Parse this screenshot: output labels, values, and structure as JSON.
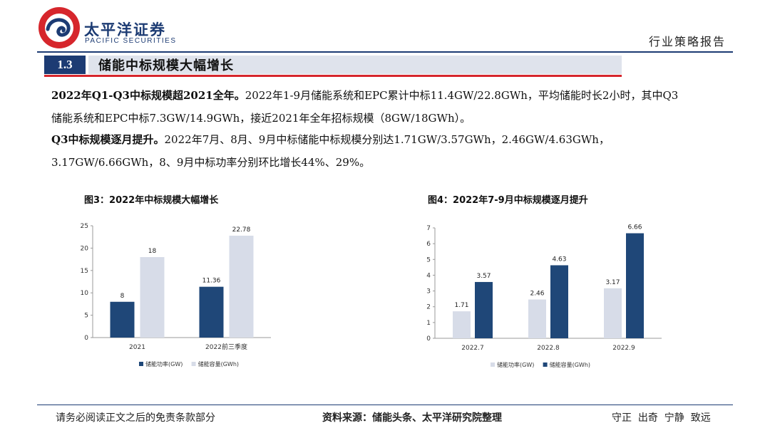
{
  "header": {
    "brand_cn": "太平洋证券",
    "brand_en": "PACIFIC SECURITIES",
    "report_type": "行业策略报告"
  },
  "section": {
    "number": "1.3",
    "title": "储能中标规模大幅增长"
  },
  "paragraphs": [
    {
      "lead": "2022年Q1-Q3中标规模超2021全年。",
      "line1_rest": "2022年1-9月储能系统和EPC累计中标11.4GW/22.8GWh，平均储能时长2小时，其中Q3",
      "line2": "储能系统和EPC中标7.3GW/14.9GWh，接近2021年全年招标规模（8GW/18GWh）。"
    },
    {
      "lead": "Q3中标规模逐月提升。",
      "line1_rest": "2022年7月、8月、9月中标储能中标规模分别达1.71GW/3.57GWh，2.46GW/4.63GWh，",
      "line2": "3.17GW/6.66GWh，8、9月中标功率分别环比增长44%、29%。"
    }
  ],
  "figures": {
    "fig3_title": "图3：2022年中标规模大幅增长",
    "fig4_title": "图4：2022年7-9月中标规模逐月提升"
  },
  "chart_data": [
    {
      "type": "bar",
      "title": "图3：2022年中标规模大幅增长",
      "categories": [
        "2021",
        "2022前三季度"
      ],
      "series": [
        {
          "name": "储能功率(GW)",
          "values": [
            8,
            11.36
          ],
          "color": "#1f4778"
        },
        {
          "name": "储能容量(GWh)",
          "values": [
            18,
            22.78
          ],
          "color": "#d7dce8"
        }
      ],
      "data_labels": [
        [
          "8",
          "11.36"
        ],
        [
          "18",
          "22.78"
        ]
      ],
      "ylim": [
        0,
        25
      ],
      "yticks": [
        "0",
        "5",
        "10",
        "15",
        "20",
        "25"
      ],
      "grid": false,
      "legend": "bottom"
    },
    {
      "type": "bar",
      "title": "图4：2022年7-9月中标规模逐月提升",
      "categories": [
        "2022.7",
        "2022.8",
        "2022.9"
      ],
      "series": [
        {
          "name": "储能功率(GW)",
          "values": [
            1.71,
            2.46,
            3.17
          ],
          "color": "#d7dce8"
        },
        {
          "name": "储能容量(GWh)",
          "values": [
            3.57,
            4.63,
            6.66
          ],
          "color": "#1f4778"
        }
      ],
      "data_labels": [
        [
          "1.71",
          "2.46",
          "3.17"
        ],
        [
          "3.57",
          "4.63",
          "6.66"
        ]
      ],
      "ylim": [
        0,
        7
      ],
      "yticks": [
        "0",
        "1",
        "2",
        "3",
        "4",
        "5",
        "6",
        "7"
      ],
      "grid": false,
      "legend": "bottom"
    }
  ],
  "footer": {
    "disclaimer": "请务必阅读正文之后的免责条款部分",
    "source": "资料来源：储能头条、太平洋研究院整理",
    "motto": "守正  出奇  宁静  致远"
  },
  "colors": {
    "navy": "#1c3b73",
    "red": "#d6262c",
    "bar_dark": "#1f4778",
    "bar_light": "#d7dce8"
  }
}
